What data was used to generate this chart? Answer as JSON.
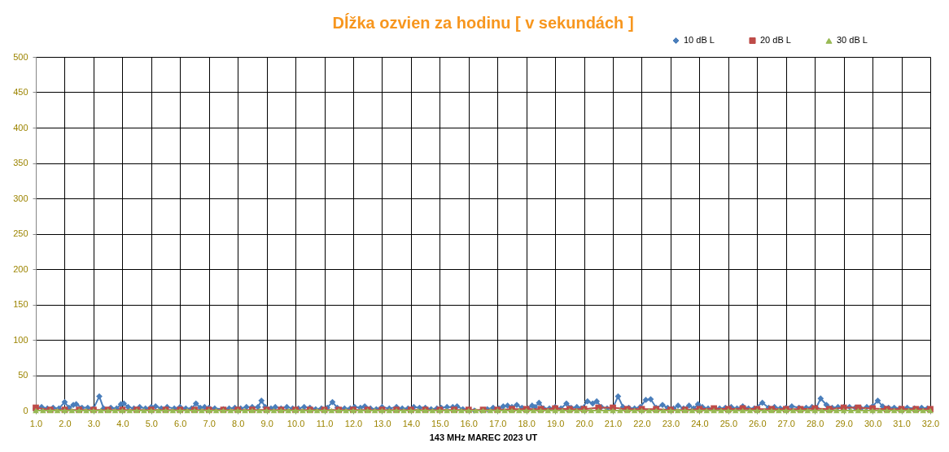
{
  "chart_data": {
    "type": "line",
    "title": "Dĺžka ozvien za hodinu [ v sekundách ]",
    "xlabel": "143 MHz MAREC  2023  UT",
    "xlim": [
      1,
      32
    ],
    "xticks": [
      {
        "value": 1,
        "label": "1.0"
      },
      {
        "value": 2,
        "label": "2.0"
      },
      {
        "value": 3,
        "label": "3.0"
      },
      {
        "value": 4,
        "label": "4.0"
      },
      {
        "value": 5,
        "label": "5.0"
      },
      {
        "value": 6,
        "label": "6.0"
      },
      {
        "value": 7,
        "label": "7.0"
      },
      {
        "value": 8,
        "label": "8.0"
      },
      {
        "value": 9,
        "label": "9.0"
      },
      {
        "value": 10,
        "label": "10.0"
      },
      {
        "value": 11,
        "label": "11.0"
      },
      {
        "value": 12,
        "label": "12.0"
      },
      {
        "value": 13,
        "label": "13.0"
      },
      {
        "value": 14,
        "label": "14.0"
      },
      {
        "value": 15,
        "label": "15.0"
      },
      {
        "value": 16,
        "label": "16.0"
      },
      {
        "value": 17,
        "label": "17.0"
      },
      {
        "value": 18,
        "label": "18.0"
      },
      {
        "value": 19,
        "label": "19.0"
      },
      {
        "value": 20,
        "label": "20.0"
      },
      {
        "value": 21,
        "label": "21.0"
      },
      {
        "value": 22,
        "label": "22.0"
      },
      {
        "value": 23,
        "label": "23.0"
      },
      {
        "value": 24,
        "label": "24.0"
      },
      {
        "value": 25,
        "label": "25.0"
      },
      {
        "value": 26,
        "label": "26.0"
      },
      {
        "value": 27,
        "label": "27.0"
      },
      {
        "value": 28,
        "label": "28.0"
      },
      {
        "value": 29,
        "label": "29.0"
      },
      {
        "value": 30,
        "label": "30.0"
      },
      {
        "value": 31,
        "label": "31.0"
      },
      {
        "value": 32,
        "label": "32.0"
      }
    ],
    "ylim": [
      0,
      500
    ],
    "yticks": [
      0,
      50,
      100,
      150,
      200,
      250,
      300,
      350,
      400,
      450,
      500
    ],
    "grid": true,
    "legend": "top right",
    "line_style": "solid",
    "series": [
      {
        "name": "10 dB L",
        "color": "#4a7ebb",
        "marker": "diamond",
        "x": [
          1.0,
          1.2,
          1.4,
          1.6,
          1.8,
          2.0,
          2.15,
          2.3,
          2.4,
          2.6,
          2.8,
          3.0,
          3.2,
          3.35,
          3.6,
          3.8,
          3.95,
          4.05,
          4.2,
          4.4,
          4.6,
          4.8,
          5.0,
          5.15,
          5.35,
          5.55,
          5.8,
          6.0,
          6.2,
          6.4,
          6.55,
          6.7,
          6.85,
          7.0,
          7.2,
          7.5,
          7.7,
          7.9,
          8.1,
          8.3,
          8.5,
          8.7,
          8.82,
          8.95,
          9.15,
          9.3,
          9.5,
          9.7,
          9.9,
          10.1,
          10.3,
          10.5,
          10.7,
          10.9,
          11.1,
          11.28,
          11.45,
          11.7,
          11.9,
          12.05,
          12.25,
          12.4,
          12.6,
          12.8,
          13.0,
          13.25,
          13.5,
          13.7,
          13.9,
          14.1,
          14.3,
          14.5,
          14.7,
          14.9,
          15.05,
          15.25,
          15.45,
          15.6,
          15.8,
          16.0,
          16.2,
          16.45,
          16.65,
          16.85,
          17.05,
          17.2,
          17.35,
          17.5,
          17.67,
          17.85,
          18.05,
          18.2,
          18.3,
          18.44,
          18.6,
          18.8,
          19.0,
          19.2,
          19.39,
          19.55,
          19.75,
          19.9,
          20.12,
          20.3,
          20.44,
          20.6,
          20.8,
          21.0,
          21.18,
          21.35,
          21.55,
          21.75,
          21.95,
          22.14,
          22.31,
          22.5,
          22.72,
          22.9,
          23.1,
          23.26,
          23.45,
          23.64,
          23.8,
          23.95,
          24.1,
          24.3,
          24.5,
          24.7,
          24.9,
          25.1,
          25.3,
          25.5,
          25.7,
          25.9,
          26.18,
          26.4,
          26.6,
          26.8,
          27.0,
          27.2,
          27.45,
          27.7,
          27.9,
          28.05,
          28.2,
          28.4,
          28.6,
          28.8,
          29.0,
          29.2,
          29.4,
          29.6,
          29.8,
          30.0,
          30.18,
          30.35,
          30.55,
          30.75,
          30.95,
          31.2,
          31.45,
          31.7,
          31.9,
          32.0
        ],
        "values": [
          3,
          5,
          3,
          4,
          3,
          12,
          4,
          8,
          9,
          4,
          4,
          3,
          20,
          3,
          4,
          3,
          9,
          10,
          5,
          3,
          5,
          3,
          5,
          6,
          3,
          5,
          3,
          5,
          3,
          3,
          10,
          4,
          5,
          4,
          3,
          2,
          3,
          4,
          3,
          5,
          5,
          5,
          14,
          5,
          3,
          5,
          3,
          5,
          3,
          3,
          5,
          4,
          2,
          3,
          4,
          12,
          4,
          3,
          3,
          5,
          4,
          6,
          3,
          2,
          5,
          3,
          5,
          3,
          3,
          5,
          4,
          4,
          2,
          3,
          4,
          5,
          5,
          6,
          2,
          1,
          0,
          0,
          2,
          4,
          3,
          6,
          7,
          5,
          8,
          4,
          3,
          7,
          5,
          11,
          3,
          3,
          5,
          3,
          10,
          4,
          5,
          3,
          13,
          10,
          13,
          5,
          3,
          4,
          20,
          5,
          4,
          3,
          5,
          15,
          16,
          4,
          8,
          4,
          3,
          7,
          3,
          7,
          3,
          9,
          5,
          3,
          2,
          3,
          4,
          5,
          3,
          6,
          3,
          3,
          11,
          4,
          5,
          3,
          4,
          6,
          4,
          4,
          5,
          4,
          17,
          8,
          4,
          5,
          5,
          5,
          4,
          3,
          5,
          6,
          14,
          6,
          4,
          4,
          3,
          4,
          3,
          4,
          3,
          2
        ]
      },
      {
        "name": "20 dB L",
        "color": "#be4b48",
        "marker": "square",
        "x": [
          1.0,
          1.5,
          2.0,
          2.5,
          3.0,
          3.5,
          4.0,
          4.5,
          5.0,
          5.5,
          6.0,
          6.5,
          7.0,
          7.5,
          8.0,
          8.5,
          9.0,
          9.5,
          10.0,
          10.5,
          11.0,
          11.5,
          12.0,
          12.5,
          13.0,
          13.5,
          14.0,
          14.5,
          15.0,
          15.5,
          16.0,
          16.5,
          17.0,
          17.5,
          18.0,
          18.5,
          19.0,
          19.5,
          20.0,
          20.5,
          21.0,
          21.5,
          22.0,
          22.5,
          23.0,
          23.5,
          24.0,
          24.5,
          25.0,
          25.5,
          26.0,
          26.5,
          27.0,
          27.5,
          28.0,
          28.5,
          29.0,
          29.5,
          30.0,
          30.5,
          31.0,
          31.5,
          32.0
        ],
        "values": [
          4,
          1,
          1,
          1,
          1,
          1,
          1,
          1,
          1,
          1,
          1,
          1,
          1,
          1,
          1,
          1,
          1,
          1,
          1,
          1,
          1,
          1,
          1,
          1,
          1,
          1,
          1,
          1,
          1,
          1,
          1,
          1,
          1,
          2,
          2,
          2,
          3,
          2,
          2,
          4,
          4,
          2,
          2,
          2,
          1,
          1,
          2,
          3,
          2,
          3,
          2,
          2,
          2,
          2,
          3,
          2,
          4,
          4,
          3,
          2,
          2,
          2,
          2
        ]
      },
      {
        "name": "30 dB L",
        "color": "#98b954",
        "marker": "triangle",
        "x": [
          1.0,
          1.25,
          1.5,
          1.75,
          2.0,
          2.25,
          2.5,
          2.75,
          3.0,
          3.25,
          3.5,
          3.75,
          4.0,
          4.25,
          4.5,
          4.75,
          5.0,
          5.25,
          5.5,
          5.75,
          6.0,
          6.25,
          6.5,
          6.75,
          7.0,
          7.25,
          7.5,
          7.75,
          8.0,
          8.25,
          8.5,
          8.75,
          9.0,
          9.25,
          9.5,
          9.75,
          10.0,
          10.25,
          10.5,
          10.75,
          11.0,
          11.25,
          11.5,
          11.75,
          12.0,
          12.25,
          12.5,
          12.75,
          13.0,
          13.25,
          13.5,
          13.75,
          14.0,
          14.25,
          14.5,
          14.75,
          15.0,
          15.25,
          15.5,
          15.75,
          16.0,
          16.25,
          16.5,
          16.75,
          17.0,
          17.25,
          17.5,
          17.75,
          18.0,
          18.25,
          18.5,
          18.75,
          19.0,
          19.25,
          19.5,
          19.75,
          20.0,
          20.25,
          20.5,
          20.75,
          21.0,
          21.25,
          21.5,
          21.75,
          22.0,
          22.25,
          22.5,
          22.75,
          23.0,
          23.25,
          23.5,
          23.75,
          24.0,
          24.25,
          24.5,
          24.75,
          25.0,
          25.25,
          25.5,
          25.75,
          26.0,
          26.25,
          26.5,
          26.75,
          27.0,
          27.25,
          27.5,
          27.75,
          28.0,
          28.25,
          28.5,
          28.75,
          29.0,
          29.25,
          29.5,
          29.75,
          30.0,
          30.25,
          30.5,
          30.75,
          31.0,
          31.25,
          31.5,
          31.75,
          32.0
        ],
        "values": [
          0,
          0,
          0,
          0,
          0,
          0,
          0,
          0,
          0,
          0,
          0,
          0,
          0,
          0,
          0,
          0,
          0,
          0,
          0,
          0,
          0,
          0,
          0,
          0,
          0,
          0,
          0,
          0,
          0,
          0,
          0,
          0,
          0,
          0,
          0,
          0,
          0,
          0,
          0,
          0,
          0,
          0,
          0,
          0,
          0,
          0,
          0,
          0,
          0,
          0,
          0,
          0,
          0,
          0,
          0,
          0,
          0,
          0,
          0,
          0,
          0,
          0,
          0,
          0,
          0,
          0,
          0,
          0,
          0,
          0,
          0,
          0,
          0,
          0,
          0,
          0,
          0,
          0,
          0,
          0,
          0,
          0,
          0,
          0,
          0,
          0,
          0,
          0,
          0,
          0,
          0,
          0,
          0,
          0,
          0,
          0,
          0,
          0,
          0,
          0,
          0,
          0,
          0,
          0,
          0,
          0,
          0,
          0,
          0,
          0,
          0,
          0,
          0,
          0,
          0,
          0,
          0,
          0,
          0,
          0,
          0,
          0,
          0,
          0,
          0
        ]
      }
    ]
  }
}
